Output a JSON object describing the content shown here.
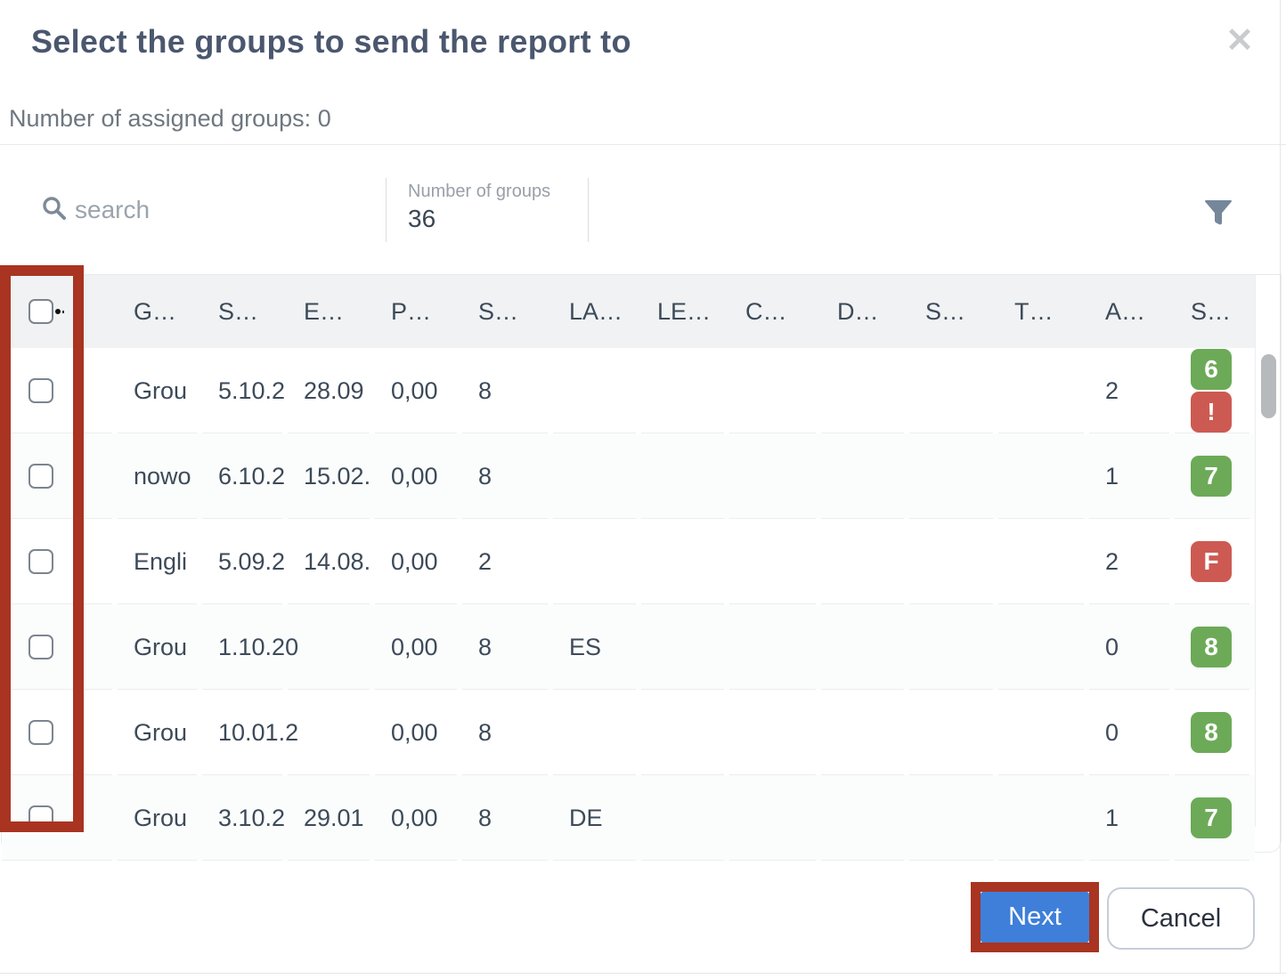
{
  "modal": {
    "title": "Select the groups to send the report to",
    "close_label": "✕",
    "assigned_summary": "Number of assigned groups: 0"
  },
  "toolbar": {
    "search_placeholder": "search",
    "group_count_label": "Number of groups",
    "group_count_value": "36",
    "filter_icon": "funnel-icon",
    "search_icon": "search-icon"
  },
  "table": {
    "select_all_checked": false,
    "headers": [
      "G…",
      "S…",
      "E…",
      "P…",
      "S…",
      "LA…",
      "LE…",
      "C…",
      "D…",
      "S…",
      "T…",
      "A…",
      "S…"
    ],
    "rows": [
      {
        "checked": false,
        "cells": [
          "Grou",
          "5.10.2",
          "28.09",
          "0,00",
          "8",
          "",
          "",
          "",
          "",
          "",
          "",
          "2"
        ],
        "badges": [
          {
            "text": "6",
            "color": "green"
          },
          {
            "text": "!",
            "color": "red"
          }
        ]
      },
      {
        "checked": false,
        "cells": [
          "nowo",
          "6.10.2",
          "15.02.",
          "0,00",
          "8",
          "",
          "",
          "",
          "",
          "",
          "",
          "1"
        ],
        "badges": [
          {
            "text": "7",
            "color": "green"
          }
        ]
      },
      {
        "checked": false,
        "cells": [
          "Engli",
          "5.09.2",
          "14.08.",
          "0,00",
          "2",
          "",
          "",
          "",
          "",
          "",
          "",
          "2"
        ],
        "badges": [
          {
            "text": "F",
            "color": "red"
          }
        ]
      },
      {
        "checked": false,
        "cells": [
          "Grou",
          "1.10.20",
          "",
          "0,00",
          "8",
          "ES",
          "",
          "",
          "",
          "",
          "",
          "0"
        ],
        "badges": [
          {
            "text": "8",
            "color": "green"
          }
        ]
      },
      {
        "checked": false,
        "cells": [
          "Grou",
          "10.01.2",
          "",
          "0,00",
          "8",
          "",
          "",
          "",
          "",
          "",
          "",
          "0"
        ],
        "badges": [
          {
            "text": "8",
            "color": "green"
          }
        ]
      },
      {
        "checked": false,
        "cells": [
          "Grou",
          "3.10.2",
          "29.01",
          "0,00",
          "8",
          "DE",
          "",
          "",
          "",
          "",
          "",
          "1"
        ],
        "badges": [
          {
            "text": "7",
            "color": "green"
          }
        ]
      }
    ]
  },
  "footer": {
    "next_label": "Next",
    "cancel_label": "Cancel"
  },
  "colors": {
    "accent_blue": "#3f7fd9",
    "annotation_red": "#a83421",
    "badge_green": "#6caa58",
    "badge_red": "#cd5a52",
    "title_text": "#4a576e"
  }
}
